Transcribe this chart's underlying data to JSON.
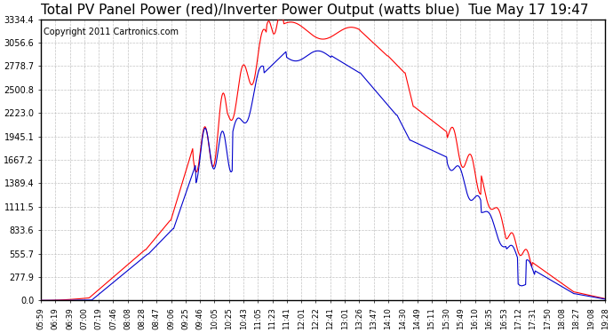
{
  "title": "Total PV Panel Power (red)/Inverter Power Output (watts blue)  Tue May 17 19:47",
  "copyright": "Copyright 2011 Cartronics.com",
  "yticks": [
    0.0,
    277.9,
    555.7,
    833.6,
    1111.5,
    1389.4,
    1667.2,
    1945.1,
    2223.0,
    2500.8,
    2778.7,
    3056.6,
    3334.4
  ],
  "ymax": 3334.4,
  "ymin": 0.0,
  "red_color": "#ff0000",
  "blue_color": "#0000cc",
  "bg_color": "#ffffff",
  "grid_color": "#aaaaaa",
  "title_fontsize": 11,
  "copyright_fontsize": 7,
  "xtick_labels": [
    "05:59",
    "06:19",
    "06:39",
    "07:00",
    "07:19",
    "07:46",
    "08:08",
    "08:28",
    "08:47",
    "09:06",
    "09:25",
    "09:46",
    "10:05",
    "10:25",
    "10:43",
    "11:05",
    "11:23",
    "11:41",
    "12:01",
    "12:22",
    "12:41",
    "13:01",
    "13:26",
    "13:47",
    "14:10",
    "14:30",
    "14:49",
    "15:11",
    "15:30",
    "15:49",
    "16:10",
    "16:35",
    "16:53",
    "17:12",
    "17:31",
    "17:50",
    "18:08",
    "18:27",
    "19:08",
    "19:28"
  ]
}
